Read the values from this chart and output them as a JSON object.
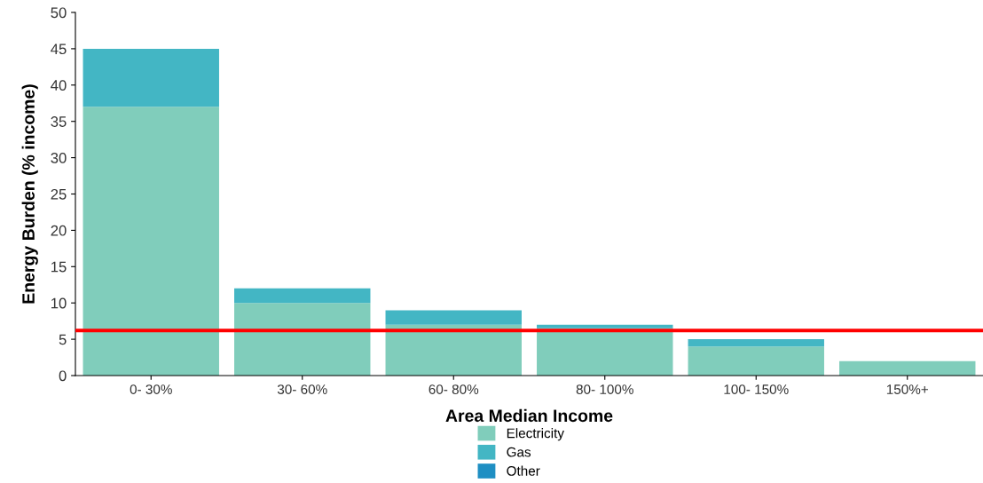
{
  "chart_data": {
    "type": "bar",
    "stacked": true,
    "xlabel": "Area Median Income",
    "ylabel": "Energy Burden (% income)",
    "categories": [
      "0- 30%",
      "30- 60%",
      "60- 80%",
      "80- 100%",
      "100- 150%",
      "150%+"
    ],
    "series": [
      {
        "name": "Electricity",
        "color": "#80cdbb",
        "values": [
          37,
          10,
          7,
          6.5,
          4,
          2
        ]
      },
      {
        "name": "Gas",
        "color": "#43b6c4",
        "values": [
          8,
          2,
          2,
          0.5,
          1,
          0
        ]
      },
      {
        "name": "Other",
        "color": "#1f8fc3",
        "values": [
          0,
          0,
          0,
          0,
          0,
          0
        ]
      }
    ],
    "ylim": [
      0,
      50
    ],
    "yticks": [
      0,
      5,
      10,
      15,
      20,
      25,
      30,
      35,
      40,
      45,
      50
    ],
    "ref_lines": [
      {
        "axis": "y",
        "value": 6.2,
        "color": "#ff0000",
        "line_style": "solid"
      }
    ],
    "grid": false,
    "legend": "bottom"
  }
}
